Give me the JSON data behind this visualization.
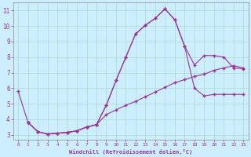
{
  "xlabel": "Windchill (Refroidissement éolien,°C)",
  "bg_color": "#cceeff",
  "grid_color": "#aaddcc",
  "line_color": "#993399",
  "xlim": [
    -0.5,
    23.5
  ],
  "ylim": [
    2.7,
    11.5
  ],
  "xticks": [
    0,
    1,
    2,
    3,
    4,
    5,
    6,
    7,
    8,
    9,
    10,
    11,
    12,
    13,
    14,
    15,
    16,
    17,
    18,
    19,
    20,
    21,
    22,
    23
  ],
  "yticks": [
    3,
    4,
    5,
    6,
    7,
    8,
    9,
    10,
    11
  ],
  "line1_x": [
    0,
    1
  ],
  "line1_y": [
    5.8,
    3.8
  ],
  "line2_x": [
    1,
    2,
    3,
    4,
    5,
    6,
    7,
    8,
    9,
    10,
    11,
    12,
    13,
    14,
    15,
    16,
    17,
    18,
    19,
    20,
    21,
    22,
    23
  ],
  "line2_y": [
    3.8,
    3.2,
    3.05,
    3.1,
    3.15,
    3.25,
    3.5,
    3.65,
    4.9,
    6.5,
    8.0,
    9.5,
    10.05,
    10.5,
    11.1,
    10.4,
    8.7,
    7.5,
    8.1,
    8.1,
    8.0,
    7.3,
    7.25
  ],
  "line3_x": [
    1,
    2,
    3,
    4,
    5,
    6,
    7,
    8,
    9,
    10,
    11,
    12,
    13,
    14,
    15,
    16,
    17,
    18,
    19,
    20,
    21,
    22,
    23
  ],
  "line3_y": [
    3.8,
    3.2,
    3.05,
    3.1,
    3.15,
    3.25,
    3.5,
    3.65,
    4.9,
    6.5,
    8.0,
    9.5,
    10.05,
    10.5,
    11.1,
    10.4,
    8.7,
    6.0,
    5.5,
    5.6,
    5.6,
    5.6,
    5.6
  ],
  "line4_x": [
    1,
    2,
    3,
    4,
    5,
    6,
    7,
    8,
    9,
    10,
    11,
    12,
    13,
    14,
    15,
    16,
    17,
    18,
    19,
    20,
    21,
    22,
    23
  ],
  "line4_y": [
    3.8,
    3.2,
    3.05,
    3.1,
    3.15,
    3.25,
    3.5,
    3.65,
    4.3,
    4.6,
    4.9,
    5.15,
    5.45,
    5.75,
    6.05,
    6.35,
    6.55,
    6.75,
    6.9,
    7.15,
    7.3,
    7.45,
    7.3
  ]
}
